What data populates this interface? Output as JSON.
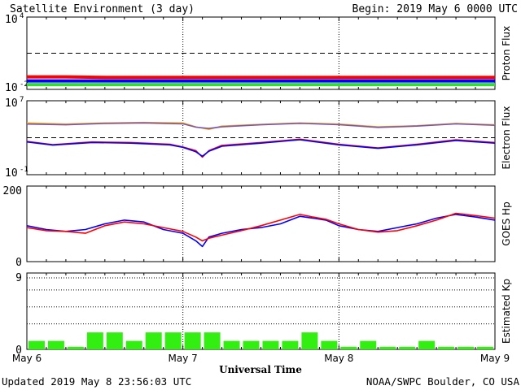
{
  "header": {
    "title": "Satellite Environment (3 day)",
    "begin": "Begin:  2019 May 6 0000 UTC"
  },
  "footer": {
    "updated": "Updated 2019 May  8 23:56:03 UTC",
    "credit": "NOAA/SWPC Boulder, CO USA",
    "xlabel": "Universal Time"
  },
  "colors": {
    "red": "#ff0000",
    "blue": "#0000ff",
    "green": "#33dd33",
    "orange": "#ffaa00",
    "purple": "#7755bb",
    "kp_bar": "#33ee11"
  },
  "chart_data": [
    {
      "type": "line",
      "panel": "proton",
      "ylabel": "Proton Flux",
      "y_scale": "log",
      "ylim": [
        0.01,
        10000
      ],
      "y_ticks": [
        {
          "value": 10000,
          "base": "10",
          "exp": "4"
        },
        {
          "value": 0.01,
          "base": "10",
          "exp": "-2"
        }
      ],
      "x_ticks": [
        "May 6",
        "May 7",
        "May 8",
        "May 9"
      ],
      "xlim_hours": [
        0,
        72
      ],
      "threshold": 10,
      "series": [
        {
          "color": "red",
          "x": [
            0,
            6,
            12,
            18,
            24,
            30,
            36,
            42,
            48,
            54,
            60,
            66,
            72
          ],
          "y": [
            0.11,
            0.11,
            0.1,
            0.1,
            0.1,
            0.1,
            0.1,
            0.1,
            0.1,
            0.1,
            0.1,
            0.1,
            0.1
          ]
        },
        {
          "color": "blue",
          "x": [
            0,
            6,
            12,
            18,
            24,
            30,
            36,
            42,
            48,
            54,
            60,
            66,
            72
          ],
          "y": [
            0.05,
            0.05,
            0.05,
            0.05,
            0.05,
            0.05,
            0.05,
            0.05,
            0.05,
            0.05,
            0.05,
            0.05,
            0.05
          ]
        },
        {
          "color": "green",
          "x": [
            0,
            6,
            12,
            18,
            24,
            30,
            36,
            42,
            48,
            54,
            60,
            66,
            72
          ],
          "y": [
            0.025,
            0.025,
            0.025,
            0.025,
            0.025,
            0.025,
            0.025,
            0.025,
            0.025,
            0.025,
            0.025,
            0.025,
            0.025
          ]
        }
      ]
    },
    {
      "type": "line",
      "panel": "electron",
      "ylabel": "Electron Flux",
      "y_scale": "log",
      "ylim": [
        0.1,
        10000000
      ],
      "y_ticks": [
        {
          "value": 10000000,
          "base": "10",
          "exp": "7"
        },
        {
          "value": 0.1,
          "base": "10",
          "exp": "-1"
        }
      ],
      "x_ticks": [
        "May 6",
        "May 7",
        "May 8",
        "May 9"
      ],
      "xlim_hours": [
        0,
        72
      ],
      "threshold": 1000,
      "series": [
        {
          "color": "orange",
          "x": [
            0,
            6,
            12,
            18,
            24,
            26,
            28,
            30,
            36,
            42,
            48,
            54,
            60,
            66,
            72
          ],
          "y": [
            40000,
            30000,
            40000,
            45000,
            40000,
            15000,
            8000,
            18000,
            28000,
            40000,
            30000,
            15000,
            20000,
            35000,
            25000
          ]
        },
        {
          "color": "purple",
          "x": [
            0,
            6,
            12,
            18,
            24,
            26,
            28,
            30,
            36,
            42,
            48,
            54,
            60,
            66,
            72
          ],
          "y": [
            30000,
            25000,
            35000,
            40000,
            32000,
            14000,
            10000,
            15000,
            25000,
            36000,
            26000,
            13000,
            18000,
            32000,
            22000
          ]
        },
        {
          "color": "red",
          "x": [
            0,
            4,
            10,
            16,
            22,
            24,
            26,
            27,
            28,
            30,
            36,
            42,
            48,
            54,
            60,
            66,
            72
          ],
          "y": [
            400,
            180,
            350,
            300,
            200,
            100,
            40,
            8,
            40,
            150,
            300,
            700,
            200,
            80,
            200,
            600,
            300
          ]
        },
        {
          "color": "blue",
          "x": [
            0,
            4,
            10,
            16,
            22,
            24,
            26,
            27,
            28,
            30,
            36,
            42,
            48,
            54,
            60,
            66,
            72
          ],
          "y": [
            350,
            160,
            300,
            260,
            170,
            90,
            30,
            10,
            35,
            120,
            260,
            600,
            170,
            70,
            170,
            500,
            260
          ]
        }
      ]
    },
    {
      "type": "line",
      "panel": "goes_hp",
      "ylabel": "GOES Hp",
      "ylim": [
        0,
        200
      ],
      "y_ticks": [
        {
          "value": 200,
          "label": "200"
        },
        {
          "value": 0,
          "label": "0"
        }
      ],
      "x_ticks": [
        "May 6",
        "May 7",
        "May 8",
        "May 9"
      ],
      "xlim_hours": [
        0,
        72
      ],
      "series": [
        {
          "color": "blue",
          "x": [
            0,
            3,
            6,
            9,
            12,
            15,
            18,
            21,
            24,
            26,
            27,
            28,
            30,
            33,
            36,
            39,
            42,
            44,
            46,
            48,
            51,
            54,
            57,
            60,
            63,
            66,
            69,
            72
          ],
          "y": [
            95,
            85,
            80,
            85,
            100,
            110,
            105,
            85,
            75,
            55,
            40,
            65,
            75,
            85,
            90,
            100,
            120,
            115,
            110,
            95,
            85,
            80,
            90,
            100,
            115,
            125,
            118,
            110
          ]
        },
        {
          "color": "red",
          "x": [
            0,
            3,
            6,
            9,
            12,
            15,
            18,
            21,
            24,
            26,
            27,
            28,
            30,
            33,
            36,
            39,
            42,
            44,
            46,
            48,
            51,
            54,
            57,
            60,
            63,
            66,
            69,
            72
          ],
          "y": [
            90,
            82,
            80,
            75,
            95,
            105,
            100,
            90,
            80,
            65,
            55,
            62,
            70,
            82,
            95,
            110,
            125,
            118,
            112,
            100,
            85,
            78,
            82,
            95,
            110,
            128,
            122,
            115
          ]
        }
      ]
    },
    {
      "type": "bar",
      "panel": "kp",
      "ylabel": "Estimated Kp",
      "ylim": [
        0,
        9
      ],
      "y_ticks": [
        {
          "value": 9,
          "label": "9"
        },
        {
          "value": 0,
          "label": "0"
        }
      ],
      "x_ticks": [
        "May 6",
        "May 7",
        "May 8",
        "May 9"
      ],
      "grid": true,
      "categories_hours": [
        0,
        3,
        6,
        9,
        12,
        15,
        18,
        21,
        24,
        27,
        30,
        33,
        36,
        39,
        42,
        45,
        48,
        51,
        54,
        57,
        60,
        63,
        66,
        69
      ],
      "values": [
        1,
        1,
        0.3,
        2,
        2,
        1,
        2,
        2,
        2,
        2,
        1,
        1,
        1,
        1,
        2,
        1,
        0.3,
        1,
        0.3,
        0.3,
        1,
        0.3,
        0.3,
        0.3
      ],
      "color": "kp_bar"
    }
  ]
}
